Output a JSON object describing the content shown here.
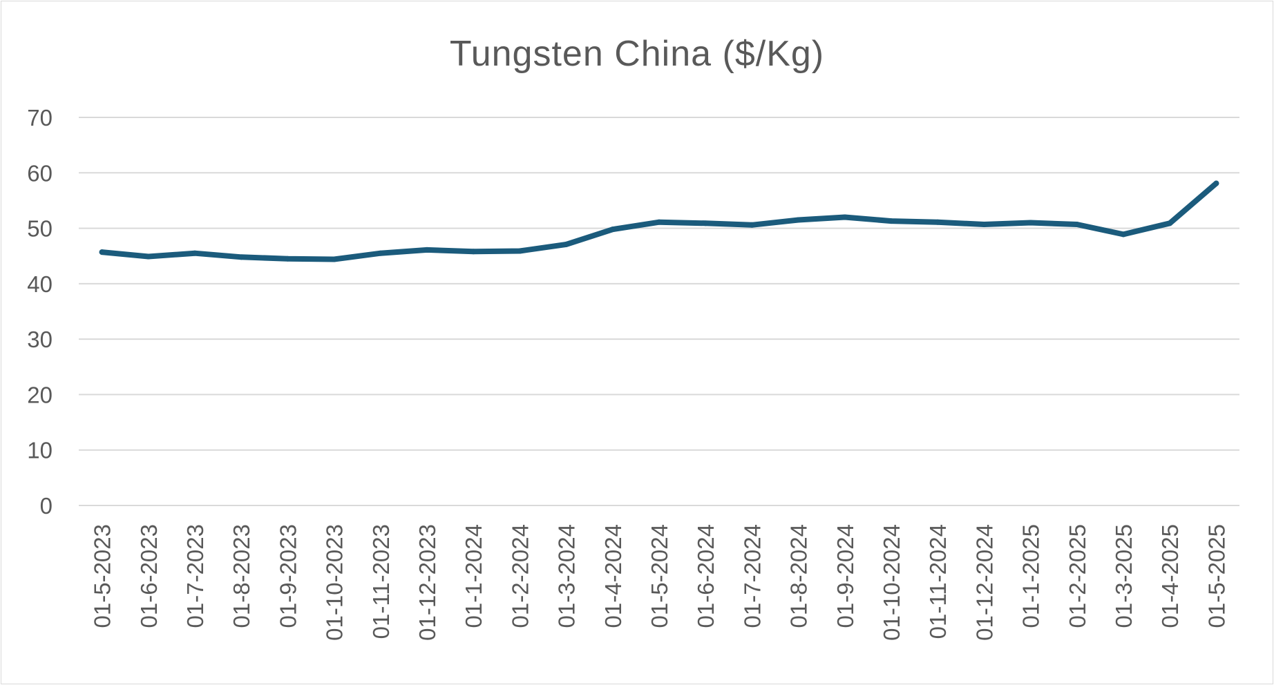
{
  "chart_data": {
    "type": "line",
    "title": "Tungsten  China ($/Kg)",
    "xlabel": "",
    "ylabel": "",
    "ylim": [
      0,
      70
    ],
    "yticks": [
      "0",
      "10",
      "20",
      "30",
      "40",
      "50",
      "60",
      "70"
    ],
    "grid": true,
    "legend": "none",
    "categories": [
      "01-5-2023",
      "01-6-2023",
      "01-7-2023",
      "01-8-2023",
      "01-9-2023",
      "01-10-2023",
      "01-11-2023",
      "01-12-2023",
      "01-1-2024",
      "01-2-2024",
      "01-3-2024",
      "01-4-2024",
      "01-5-2024",
      "01-6-2024",
      "01-7-2024",
      "01-8-2024",
      "01-9-2024",
      "01-10-2024",
      "01-11-2024",
      "01-12-2024",
      "01-1-2025",
      "01-2-2025",
      "01-3-2025",
      "01-4-2025",
      "01-5-2025"
    ],
    "series": [
      {
        "color": "#1b5b7c",
        "values": [
          45.7,
          44.9,
          45.5,
          44.8,
          44.5,
          44.4,
          45.5,
          46.1,
          45.8,
          45.9,
          47.1,
          49.8,
          51.1,
          50.9,
          50.6,
          51.5,
          52.0,
          51.3,
          51.1,
          50.7,
          51.0,
          50.7,
          48.9,
          50.9,
          58.1
        ]
      }
    ]
  }
}
